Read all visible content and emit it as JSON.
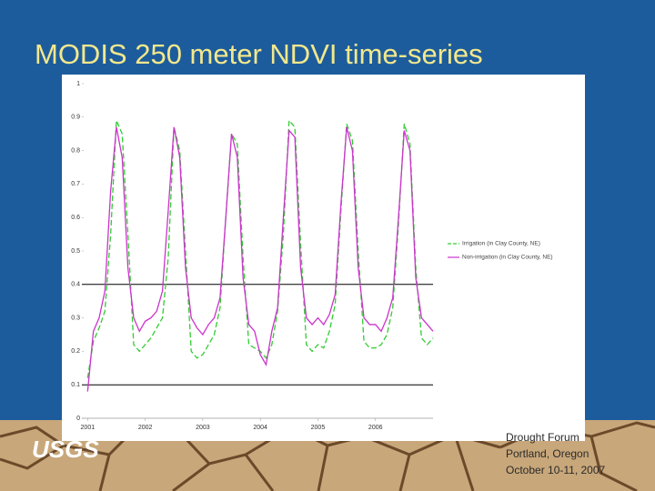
{
  "slide": {
    "title": "MODIS 250 meter NDVI time-series",
    "logo": "USGS",
    "footer": [
      "Drought Forum",
      "Portland, Oregon",
      "October 10-11, 2007"
    ]
  },
  "chart_data": {
    "type": "line",
    "x": [
      2001.0,
      2001.1,
      2001.2,
      2001.3,
      2001.4,
      2001.5,
      2001.6,
      2001.7,
      2001.8,
      2001.9,
      2002.0,
      2002.1,
      2002.2,
      2002.3,
      2002.4,
      2002.5,
      2002.6,
      2002.7,
      2002.8,
      2002.9,
      2003.0,
      2003.1,
      2003.2,
      2003.3,
      2003.4,
      2003.5,
      2003.6,
      2003.7,
      2003.8,
      2003.9,
      2004.0,
      2004.1,
      2004.2,
      2004.3,
      2004.4,
      2004.5,
      2004.6,
      2004.7,
      2004.8,
      2004.9,
      2005.0,
      2005.1,
      2005.2,
      2005.3,
      2005.4,
      2005.5,
      2005.6,
      2005.7,
      2005.8,
      2005.9,
      2006.0,
      2006.1,
      2006.2,
      2006.3,
      2006.4,
      2006.5,
      2006.6,
      2006.7,
      2006.8,
      2006.9,
      2007.0
    ],
    "series": [
      {
        "name": "Irrigation (in Clay County, NE)",
        "color": "#33cc33",
        "dashed": true,
        "values": [
          0.12,
          0.23,
          0.27,
          0.32,
          0.55,
          0.89,
          0.85,
          0.55,
          0.22,
          0.2,
          0.22,
          0.24,
          0.27,
          0.3,
          0.48,
          0.87,
          0.8,
          0.5,
          0.2,
          0.18,
          0.19,
          0.22,
          0.25,
          0.33,
          0.6,
          0.85,
          0.82,
          0.48,
          0.22,
          0.21,
          0.2,
          0.18,
          0.22,
          0.32,
          0.55,
          0.89,
          0.87,
          0.52,
          0.22,
          0.2,
          0.22,
          0.21,
          0.26,
          0.34,
          0.62,
          0.88,
          0.83,
          0.5,
          0.23,
          0.21,
          0.21,
          0.22,
          0.25,
          0.33,
          0.58,
          0.88,
          0.82,
          0.45,
          0.24,
          0.22,
          0.24
        ]
      },
      {
        "name": "Non-irrigation (in Clay County, NE)",
        "color": "#cc33cc",
        "dashed": false,
        "values": [
          0.08,
          0.26,
          0.3,
          0.38,
          0.68,
          0.87,
          0.78,
          0.45,
          0.3,
          0.26,
          0.29,
          0.3,
          0.32,
          0.38,
          0.62,
          0.87,
          0.78,
          0.45,
          0.3,
          0.27,
          0.25,
          0.28,
          0.3,
          0.36,
          0.6,
          0.85,
          0.78,
          0.42,
          0.28,
          0.26,
          0.19,
          0.16,
          0.26,
          0.33,
          0.6,
          0.86,
          0.84,
          0.45,
          0.3,
          0.28,
          0.3,
          0.28,
          0.31,
          0.37,
          0.64,
          0.87,
          0.8,
          0.45,
          0.3,
          0.28,
          0.28,
          0.26,
          0.3,
          0.36,
          0.6,
          0.86,
          0.8,
          0.42,
          0.3,
          0.28,
          0.26
        ]
      }
    ],
    "xlim": [
      2000.9,
      2007.0
    ],
    "xticks": [
      2001,
      2002,
      2003,
      2004,
      2005,
      2006
    ],
    "ylim": [
      0,
      1
    ],
    "yticks": [
      0,
      0.1,
      0.2,
      0.3,
      0.4,
      0.5,
      0.6,
      0.7,
      0.8,
      0.9,
      1
    ],
    "reference_lines": [
      0.1,
      0.4
    ],
    "legend": "right"
  }
}
